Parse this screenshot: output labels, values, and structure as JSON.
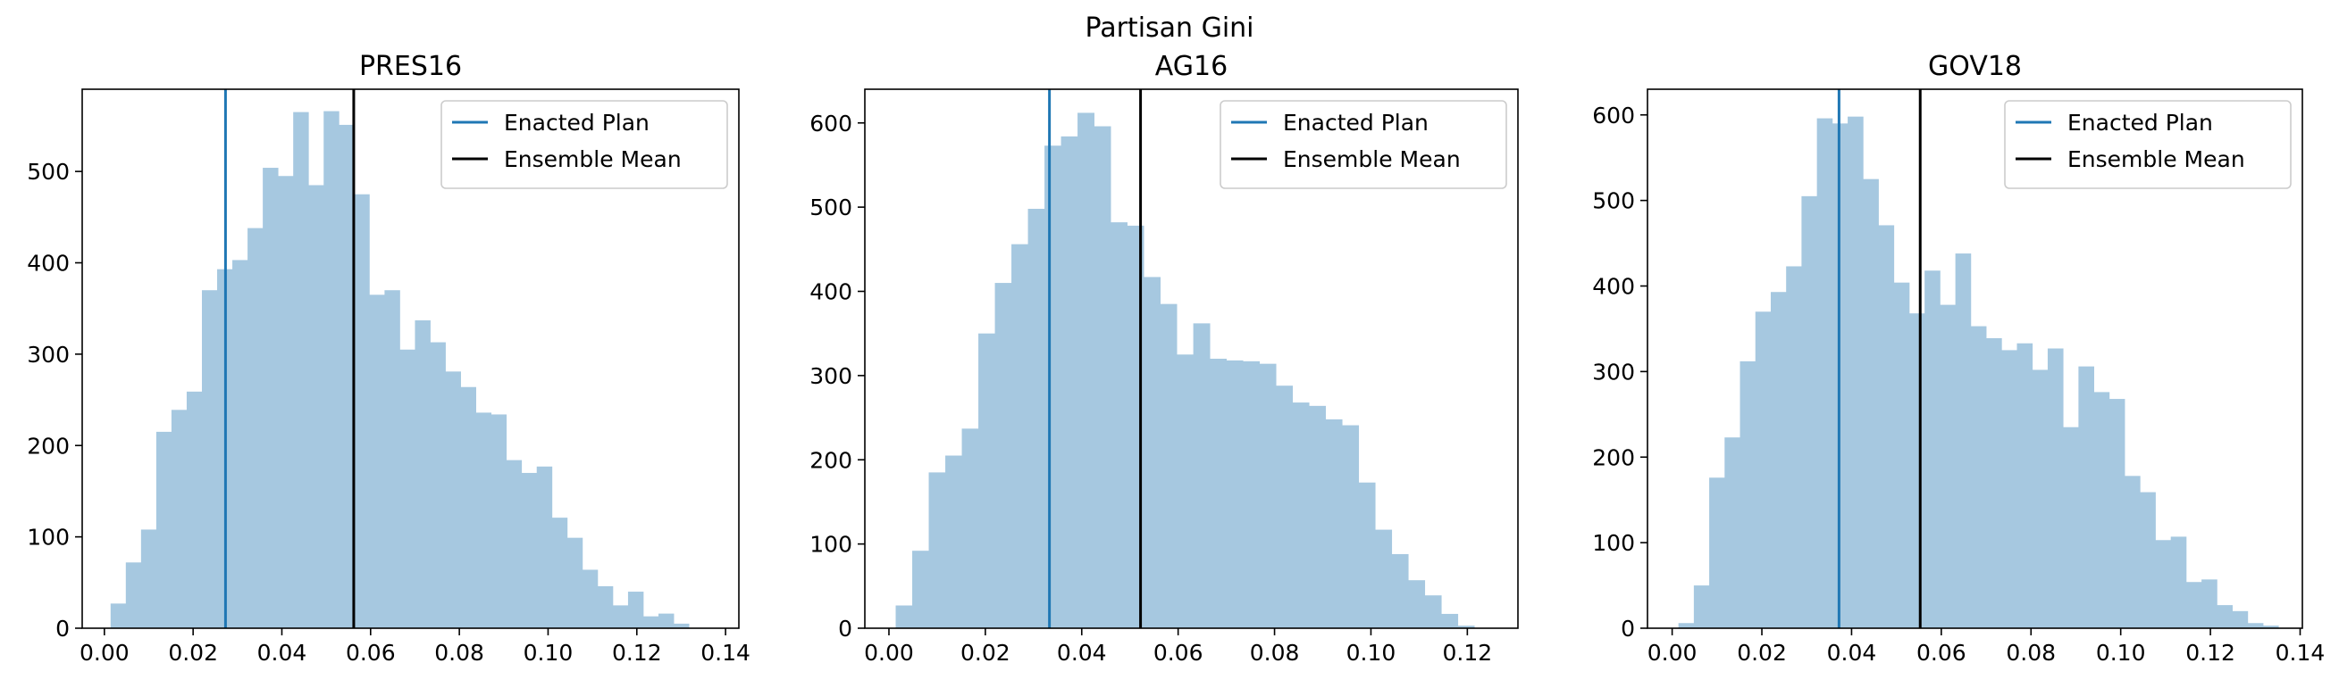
{
  "figure": {
    "suptitle": "Partisan Gini"
  },
  "chart_data": [
    {
      "type": "histogram",
      "title": "PRES16",
      "xlabel": "",
      "ylabel": "",
      "xlim": [
        -0.005,
        0.143
      ],
      "ylim": [
        0,
        590
      ],
      "xticks": [
        0.0,
        0.02,
        0.04,
        0.06,
        0.08,
        0.1,
        0.12,
        0.14
      ],
      "xtick_labels": [
        "0.00",
        "0.02",
        "0.04",
        "0.06",
        "0.08",
        "0.10",
        "0.12",
        "0.14"
      ],
      "yticks": [
        0,
        100,
        200,
        300,
        400,
        500
      ],
      "ytick_labels": [
        "0",
        "100",
        "200",
        "300",
        "400",
        "500"
      ],
      "bin_start": 0.0014,
      "bin_width": 0.00343,
      "counts": [
        27,
        72,
        108,
        215,
        239,
        259,
        370,
        393,
        403,
        438,
        504,
        495,
        565,
        485,
        566,
        551,
        475,
        365,
        370,
        305,
        337,
        313,
        281,
        264,
        236,
        234,
        184,
        170,
        177,
        121,
        99,
        64,
        46,
        25,
        40,
        13,
        16,
        5
      ],
      "enacted_plan": 0.0273,
      "ensemble_mean": 0.0562,
      "bar_color": "#a6c8e0",
      "enacted_color": "#1f77b4",
      "mean_color": "#000000",
      "legend": {
        "position": "top-right",
        "entries": [
          "Enacted Plan",
          "Ensemble Mean"
        ]
      },
      "grid": false
    },
    {
      "type": "histogram",
      "title": "AG16",
      "xlabel": "",
      "ylabel": "",
      "xlim": [
        -0.005,
        0.1305
      ],
      "ylim": [
        0,
        640
      ],
      "xticks": [
        0.0,
        0.02,
        0.04,
        0.06,
        0.08,
        0.1,
        0.12
      ],
      "xtick_labels": [
        "0.00",
        "0.02",
        "0.04",
        "0.06",
        "0.08",
        "0.10",
        "0.12"
      ],
      "yticks": [
        0,
        100,
        200,
        300,
        400,
        500,
        600
      ],
      "ytick_labels": [
        "0",
        "100",
        "200",
        "300",
        "400",
        "500",
        "600"
      ],
      "bin_start": 0.0014,
      "bin_width": 0.00343,
      "counts": [
        27,
        92,
        185,
        205,
        237,
        350,
        410,
        456,
        498,
        573,
        584,
        612,
        596,
        482,
        478,
        417,
        385,
        325,
        362,
        320,
        318,
        317,
        314,
        288,
        268,
        264,
        248,
        241,
        173,
        117,
        88,
        57,
        39,
        17,
        3
      ],
      "enacted_plan": 0.0333,
      "ensemble_mean": 0.0522,
      "bar_color": "#a6c8e0",
      "enacted_color": "#1f77b4",
      "mean_color": "#000000",
      "legend": {
        "position": "top-right",
        "entries": [
          "Enacted Plan",
          "Ensemble Mean"
        ]
      },
      "grid": false
    },
    {
      "type": "histogram",
      "title": "GOV18",
      "xlabel": "",
      "ylabel": "",
      "xlim": [
        -0.0055,
        0.1405
      ],
      "ylim": [
        0,
        630
      ],
      "xticks": [
        0.0,
        0.02,
        0.04,
        0.06,
        0.08,
        0.1,
        0.12,
        0.14
      ],
      "xtick_labels": [
        "0.00",
        "0.02",
        "0.04",
        "0.06",
        "0.08",
        "0.10",
        "0.12",
        "0.14"
      ],
      "yticks": [
        0,
        100,
        200,
        300,
        400,
        500,
        600
      ],
      "ytick_labels": [
        "0",
        "100",
        "200",
        "300",
        "400",
        "500",
        "600"
      ],
      "bin_start": 0.0014,
      "bin_width": 0.00343,
      "counts": [
        6,
        50,
        176,
        223,
        312,
        370,
        393,
        423,
        505,
        596,
        590,
        598,
        525,
        471,
        404,
        368,
        418,
        378,
        438,
        353,
        339,
        325,
        333,
        302,
        327,
        235,
        306,
        276,
        268,
        178,
        159,
        103,
        107,
        54,
        57,
        27,
        20,
        6,
        3
      ],
      "enacted_plan": 0.0372,
      "ensemble_mean": 0.0553,
      "bar_color": "#a6c8e0",
      "enacted_color": "#1f77b4",
      "mean_color": "#000000",
      "legend": {
        "position": "top-right",
        "entries": [
          "Enacted Plan",
          "Ensemble Mean"
        ]
      },
      "grid": false
    }
  ]
}
